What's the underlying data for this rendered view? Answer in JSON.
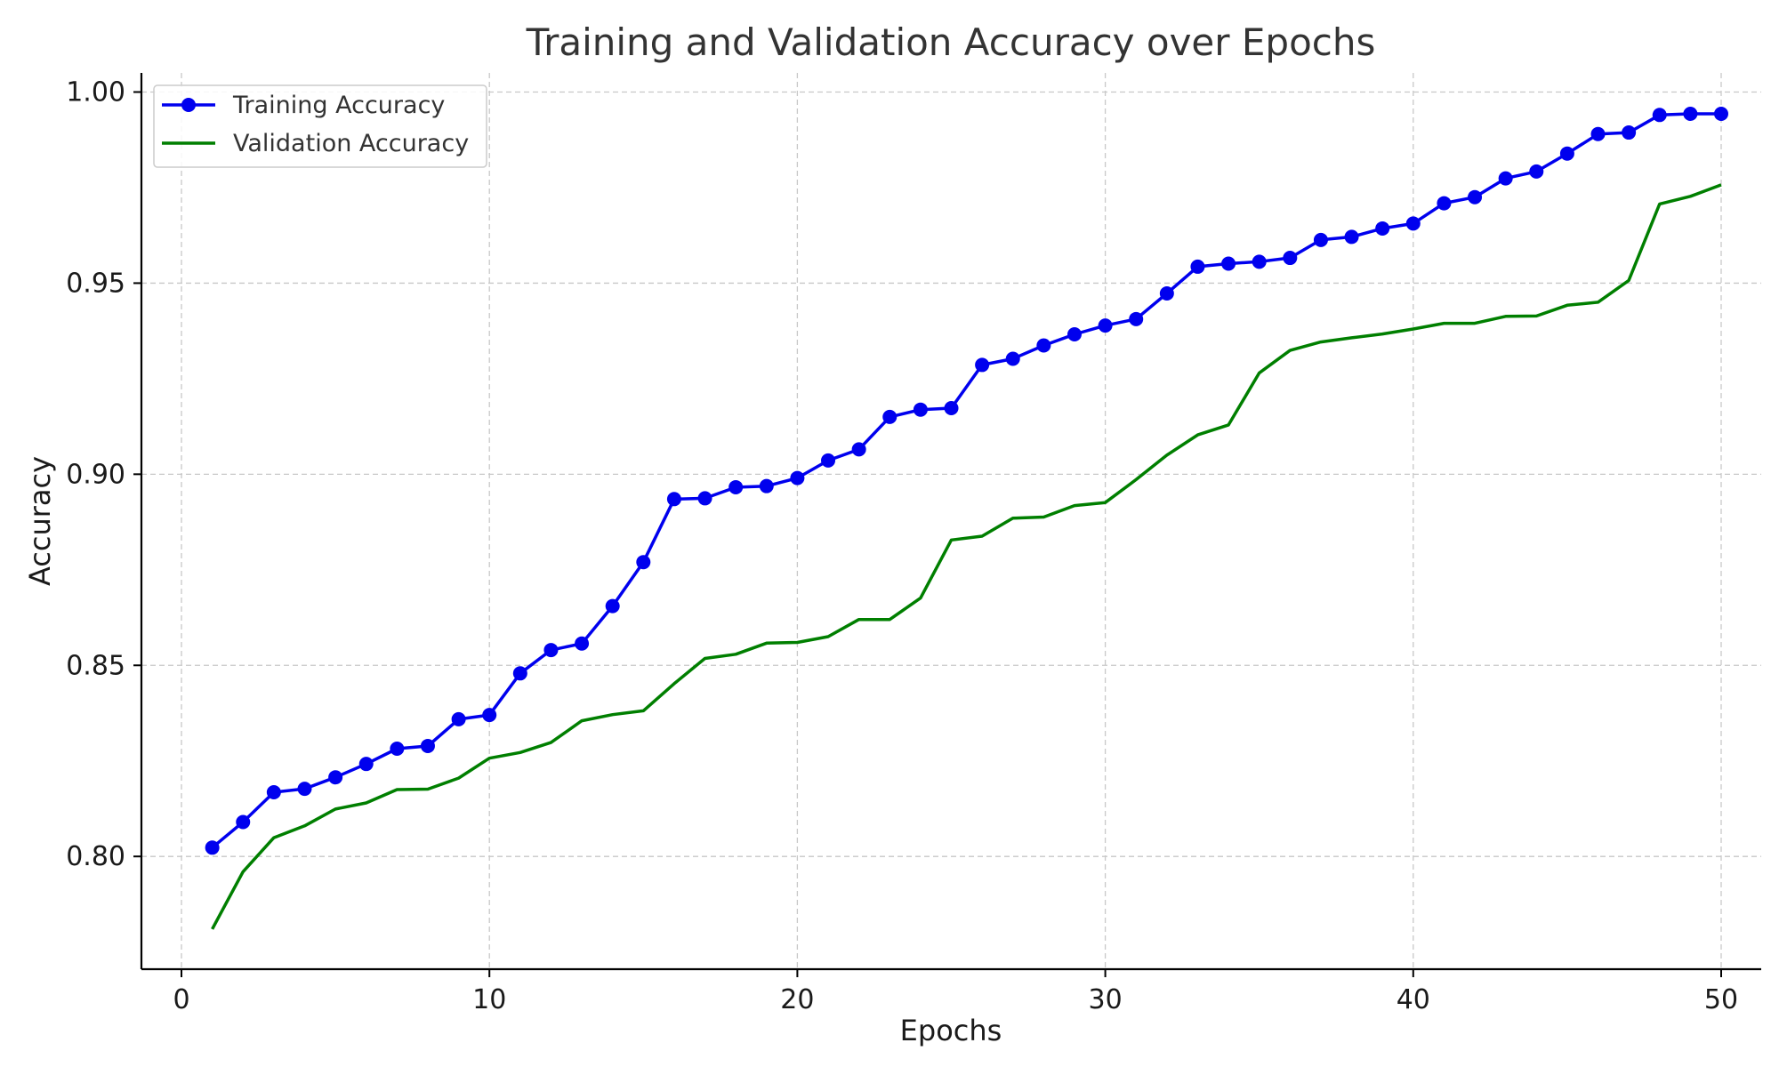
{
  "chart_data": {
    "type": "line",
    "title": "Training and Validation Accuracy over Epochs",
    "xlabel": "Epochs",
    "ylabel": "Accuracy",
    "xlim": [
      -1.3,
      51.3
    ],
    "ylim": [
      0.7705,
      1.005
    ],
    "xticks": [
      0,
      10,
      20,
      30,
      40,
      50
    ],
    "xtick_labels": [
      "0",
      "10",
      "20",
      "30",
      "40",
      "50"
    ],
    "yticks": [
      0.8,
      0.85,
      0.9,
      0.95,
      1.0
    ],
    "ytick_labels": [
      "0.80",
      "0.85",
      "0.90",
      "0.95",
      "1.00"
    ],
    "grid": true,
    "legend_position": "top-left",
    "x": [
      1,
      2,
      3,
      4,
      5,
      6,
      7,
      8,
      9,
      10,
      11,
      12,
      13,
      14,
      15,
      16,
      17,
      18,
      19,
      20,
      21,
      22,
      23,
      24,
      25,
      26,
      27,
      28,
      29,
      30,
      31,
      32,
      33,
      34,
      35,
      36,
      37,
      38,
      39,
      40,
      41,
      42,
      43,
      44,
      45,
      46,
      47,
      48,
      49,
      50
    ],
    "series": [
      {
        "name": "Training Accuracy",
        "color": "#0000ee",
        "marker": "circle",
        "values": [
          0.8023,
          0.809,
          0.8168,
          0.8177,
          0.8207,
          0.8242,
          0.8282,
          0.8289,
          0.8359,
          0.837,
          0.8479,
          0.854,
          0.8557,
          0.8655,
          0.877,
          0.8935,
          0.8937,
          0.8966,
          0.8969,
          0.899,
          0.9036,
          0.9065,
          0.915,
          0.9169,
          0.9173,
          0.9286,
          0.9302,
          0.9337,
          0.9366,
          0.9389,
          0.9406,
          0.9473,
          0.9543,
          0.9551,
          0.9556,
          0.9566,
          0.9613,
          0.9621,
          0.9643,
          0.9656,
          0.9709,
          0.9725,
          0.9774,
          0.9792,
          0.9839,
          0.989,
          0.9894,
          0.994,
          0.9943,
          0.9943
        ]
      },
      {
        "name": "Validation Accuracy",
        "color": "#007f00",
        "marker": "none",
        "values": [
          0.781,
          0.796,
          0.8049,
          0.808,
          0.8124,
          0.814,
          0.8175,
          0.8176,
          0.8205,
          0.8257,
          0.8272,
          0.8298,
          0.8355,
          0.8371,
          0.8381,
          0.8452,
          0.8518,
          0.8529,
          0.8558,
          0.856,
          0.8575,
          0.862,
          0.862,
          0.8676,
          0.8828,
          0.8838,
          0.8885,
          0.8888,
          0.8918,
          0.8926,
          0.8986,
          0.905,
          0.9103,
          0.9129,
          0.9265,
          0.9324,
          0.9346,
          0.9357,
          0.9367,
          0.938,
          0.9395,
          0.9395,
          0.9413,
          0.9414,
          0.9442,
          0.945,
          0.9507,
          0.9707,
          0.9727,
          0.9757
        ]
      }
    ]
  }
}
